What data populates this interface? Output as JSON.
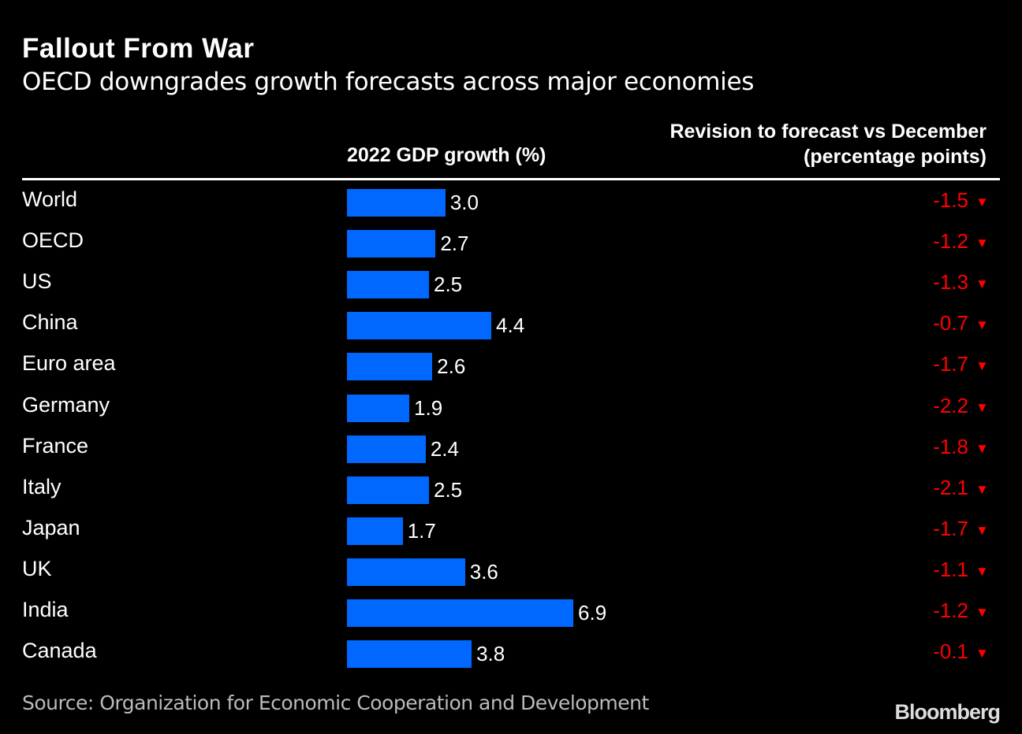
{
  "chart_data": {
    "type": "bar",
    "orientation": "horizontal",
    "title": "Fallout From War",
    "subtitle": "OECD downgrades growth forecasts across major economies",
    "series_label": "2022 GDP growth (%)",
    "revision_header": [
      "Revision to forecast vs December",
      "(percentage points)"
    ],
    "categories": [
      "World",
      "OECD",
      "US",
      "China",
      "Euro area",
      "Germany",
      "France",
      "Italy",
      "Japan",
      "UK",
      "India",
      "Canada"
    ],
    "values": [
      3.0,
      2.7,
      2.5,
      4.4,
      2.6,
      1.9,
      2.4,
      2.5,
      1.7,
      3.6,
      6.9,
      3.8
    ],
    "revisions": [
      -1.5,
      -1.2,
      -1.3,
      -0.7,
      -1.7,
      -2.2,
      -1.8,
      -2.1,
      -1.7,
      -1.1,
      -1.2,
      -0.1
    ],
    "bar_color": "#0068ff",
    "revision_color": "#ff0000",
    "revision_icon": "down-triangle-icon",
    "down_glyph": "▼",
    "source": "Source: Organization for Economic Cooperation and Development",
    "logo": "Bloomberg"
  }
}
